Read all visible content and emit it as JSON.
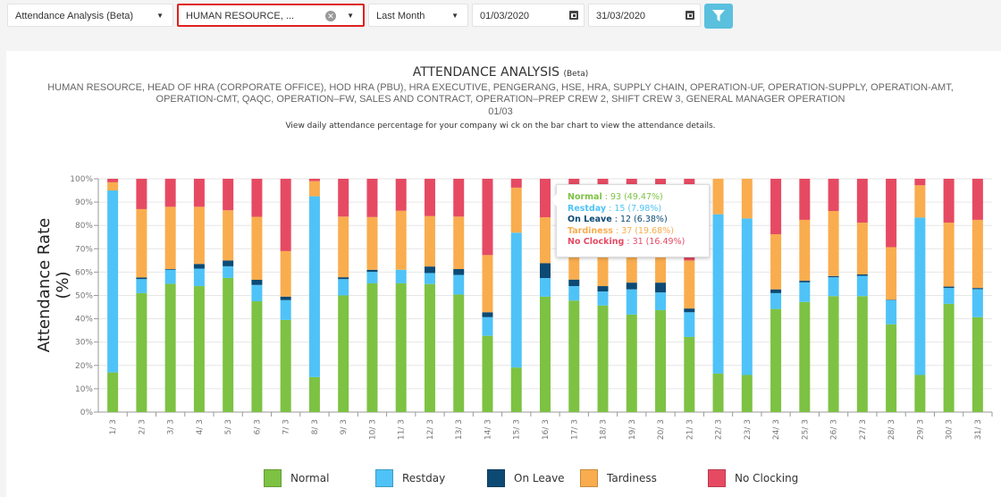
{
  "toolbar": {
    "report_select": "Attendance Analysis (Beta)",
    "department_select": "HUMAN RESOURCE, ...",
    "period_select": "Last Month",
    "start_date": "01/03/2020",
    "end_date": "31/03/2020",
    "filter_icon": "funnel-icon",
    "highlight_color": "#e02020",
    "filter_button_color": "#5bc0de"
  },
  "header": {
    "title": "ATTENDANCE ANALYSIS",
    "title_suffix": "(Beta)",
    "departments_line1": "HUMAN RESOURCE, HEAD OF HRA (CORPORATE OFFICE), HOD HRA (PBU), HRA EXECUTIVE, PENGERANG, HSE, HRA, SUPPLY CHAIN, OPERATION-UF, OPERATION-SUPPLY, OPERATION-AMT, OPERATION-",
    "departments_line2_a": "CMT, QAQC, OPERATION–FW, SALES AND CONTRACT, OPERATION–PREP",
    "departments_line2_b": "CREW 2, SHIFT CREW 3, GENERAL MANAGER OPERATION",
    "date_range": "01/03",
    "description_a": "View daily attendance percentage for your company wi",
    "description_b": "ck on the bar chart to view the attendance details."
  },
  "tooltip": {
    "rows": [
      {
        "label": "Normal",
        "value": "93 (49.47%)",
        "color": "#7dc243"
      },
      {
        "label": "Restday",
        "value": "15 (7.98%)",
        "color": "#4fc3f7"
      },
      {
        "label": "On Leave",
        "value": "12 (6.38%)",
        "color": "#0c4a74"
      },
      {
        "label": "Tardiness",
        "value": "37 (19.68%)",
        "color": "#f9ad4e"
      },
      {
        "label": "No Clocking",
        "value": "31 (16.49%)",
        "color": "#e64a63"
      }
    ]
  },
  "chart_data": {
    "type": "bar",
    "stacked": true,
    "ylabel": "Attendance Rate (%)",
    "ylim": [
      0,
      100
    ],
    "yticks": [
      "0%",
      "10%",
      "20%",
      "30%",
      "40%",
      "50%",
      "60%",
      "70%",
      "80%",
      "90%",
      "100%"
    ],
    "grid": true,
    "legend_position": "bottom",
    "categories": [
      "1/ 3",
      "2/ 3",
      "3/ 3",
      "4/ 3",
      "5/ 3",
      "6/ 3",
      "7/ 3",
      "8/ 3",
      "9/ 3",
      "10/ 3",
      "11/ 3",
      "12/ 3",
      "13/ 3",
      "14/ 3",
      "15/ 3",
      "16/ 3",
      "17/ 3",
      "18/ 3",
      "19/ 3",
      "20/ 3",
      "21/ 3",
      "22/ 3",
      "23/ 3",
      "24/ 3",
      "25/ 3",
      "26/ 3",
      "27/ 3",
      "28/ 3",
      "29/ 3",
      "30/ 3",
      "31/ 3"
    ],
    "series": [
      {
        "name": "Normal",
        "color": "#7dc243",
        "values": [
          17,
          51,
          55,
          54,
          57.5,
          47.5,
          39.5,
          15,
          50,
          55.2,
          55.2,
          54.9,
          50.4,
          32.7,
          19.1,
          49.47,
          47.8,
          45.7,
          41.8,
          43.7,
          32.2,
          16.5,
          15.9,
          44.2,
          47.2,
          49.7,
          49.7,
          37.6,
          15.9,
          46.4,
          40.7
        ]
      },
      {
        "name": "Restday",
        "color": "#4fc3f7",
        "values": [
          78,
          6,
          6,
          7.5,
          5,
          7,
          8.5,
          77.5,
          7,
          4.9,
          5.8,
          4.7,
          8.4,
          8,
          57.8,
          7.98,
          6.2,
          6,
          10.8,
          7.6,
          10.6,
          68.3,
          67.1,
          6.8,
          8.4,
          8.1,
          8.7,
          10.4,
          67.5,
          6.8,
          12
        ]
      },
      {
        "name": "On Leave",
        "color": "#0c4a74",
        "values": [
          0,
          0.7,
          0.3,
          2,
          2.5,
          2.2,
          1.5,
          0,
          0.8,
          0.9,
          0,
          2.8,
          2.5,
          2.1,
          0,
          6.38,
          2.8,
          2.3,
          2.9,
          4.2,
          1.6,
          0,
          0,
          1.6,
          0.7,
          0.5,
          0.6,
          0.2,
          0,
          0.6,
          0.5
        ]
      },
      {
        "name": "Tardiness",
        "color": "#f9ad4e",
        "values": [
          3.5,
          29.3,
          26.7,
          24.5,
          21.5,
          27,
          19.5,
          6.5,
          26,
          22.6,
          25.3,
          21.6,
          22.5,
          24.5,
          19.3,
          19.68,
          25.2,
          26.7,
          26.5,
          23,
          20.6,
          15.2,
          17,
          23.6,
          26.1,
          27.9,
          22.2,
          22.5,
          13.8,
          27.4,
          29.2
        ]
      },
      {
        "name": "No Clocking",
        "color": "#e64a63",
        "values": [
          1.5,
          13,
          12,
          12,
          13.5,
          16.3,
          31,
          1,
          16.2,
          16.4,
          13.7,
          16,
          16.2,
          32.7,
          3.8,
          16.49,
          18,
          19.3,
          18,
          21.5,
          35,
          0,
          0,
          23.8,
          17.6,
          13.8,
          18.8,
          29.3,
          2.8,
          18.8,
          17.6
        ]
      }
    ]
  }
}
